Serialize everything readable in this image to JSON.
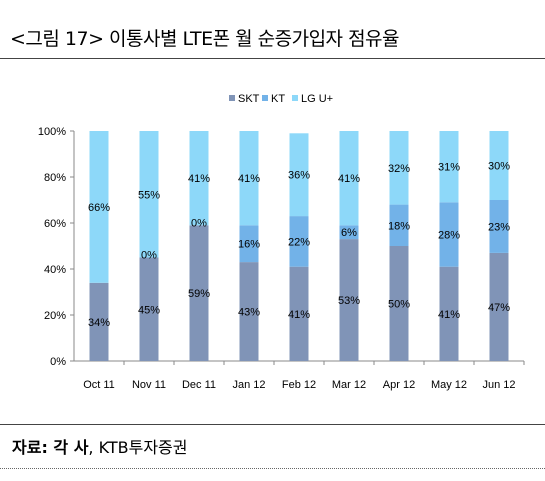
{
  "header": {
    "title": "<그림 17> 이통사별 LTE폰 월 순증가입자 점유율"
  },
  "footer": {
    "source_label": "자료: 각 사",
    "source_rest": ", KTB투자증권"
  },
  "chart_data": {
    "type": "bar",
    "stacked": true,
    "categories": [
      "Oct 11",
      "Nov 11",
      "Dec 11",
      "Jan 12",
      "Feb 12",
      "Mar 12",
      "Apr 12",
      "May 12",
      "Jun 12"
    ],
    "series": [
      {
        "name": "SKT",
        "color": "#8094b7",
        "values": [
          34,
          45,
          59,
          43,
          41,
          53,
          50,
          41,
          47
        ],
        "labels": [
          "34%",
          "45%",
          "59%",
          "43%",
          "41%",
          "53%",
          "50%",
          "41%",
          "47%"
        ]
      },
      {
        "name": "KT",
        "color": "#72b2e8",
        "values": [
          0,
          0,
          0,
          16,
          22,
          6,
          18,
          28,
          23
        ],
        "labels": [
          "",
          "0%",
          "0%",
          "16%",
          "22%",
          "6%",
          "18%",
          "28%",
          "23%"
        ]
      },
      {
        "name": "LG U+",
        "color": "#8dd8f9",
        "values": [
          66,
          55,
          41,
          41,
          36,
          41,
          32,
          31,
          30
        ],
        "labels": [
          "66%",
          "55%",
          "41%",
          "41%",
          "36%",
          "41%",
          "32%",
          "31%",
          "30%"
        ]
      }
    ],
    "y_ticks": [
      "0%",
      "20%",
      "40%",
      "60%",
      "80%",
      "100%"
    ],
    "ylim": [
      0,
      100
    ],
    "legend_position": "top",
    "grid": false
  }
}
